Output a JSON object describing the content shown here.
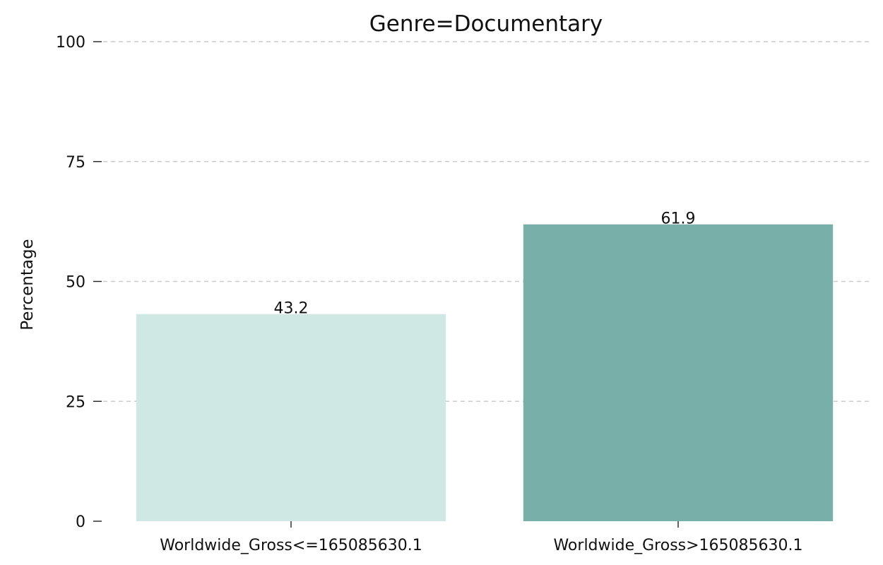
{
  "chart_data": {
    "type": "bar",
    "title": "Genre=Documentary",
    "xlabel": "",
    "ylabel": "Percentage",
    "categories": [
      "Worldwide_Gross<=165085630.1",
      "Worldwide_Gross>165085630.1"
    ],
    "values": [
      43.2,
      61.9
    ],
    "value_labels": [
      "43.2",
      "61.9"
    ],
    "bar_colors": [
      "#cfe8e4",
      "#78afa9"
    ],
    "ylim": [
      0,
      100
    ],
    "yticks": [
      0,
      25,
      50,
      75,
      100
    ],
    "ytick_labels": [
      "0",
      "25",
      "50",
      "75",
      "100"
    ],
    "grid": "y dashed",
    "legend": "none"
  }
}
